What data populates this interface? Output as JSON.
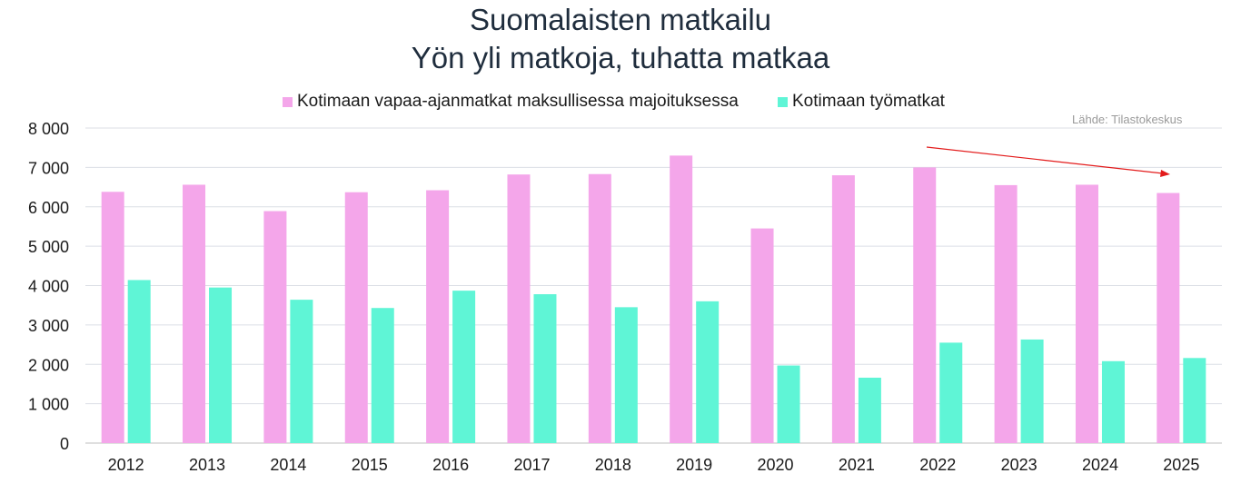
{
  "chart_data": {
    "type": "bar",
    "title": "Suomalaisten matkailu",
    "subtitle": "Yön yli matkoja, tuhatta matkaa",
    "source": "Lähde: Tilastokeskus",
    "categories": [
      "2012",
      "2013",
      "2014",
      "2015",
      "2016",
      "2017",
      "2018",
      "2019",
      "2020",
      "2021",
      "2022",
      "2023",
      "2024",
      "2025"
    ],
    "series": [
      {
        "name": "Kotimaan vapaa-ajanmatkat maksullisessa majoituksessa",
        "color": "#f4a6ea",
        "values": [
          6380,
          6560,
          5890,
          6370,
          6420,
          6820,
          6830,
          7300,
          5450,
          6800,
          7000,
          6550,
          6560,
          6350
        ]
      },
      {
        "name": "Kotimaan työmatkat",
        "color": "#5ff5d6",
        "values": [
          4140,
          3950,
          3640,
          3430,
          3870,
          3780,
          3450,
          3600,
          1970,
          1660,
          2550,
          2630,
          2080,
          2160
        ]
      }
    ],
    "ylim": [
      0,
      8000
    ],
    "yticks": [
      "0",
      "1 000",
      "2 000",
      "3 000",
      "4 000",
      "5 000",
      "6 000",
      "7 000",
      "8 000"
    ],
    "xlabel": "",
    "ylabel": "",
    "grid": true,
    "legend_position": "top",
    "annotation": {
      "type": "trend-arrow",
      "color": "#e31b1b"
    }
  }
}
